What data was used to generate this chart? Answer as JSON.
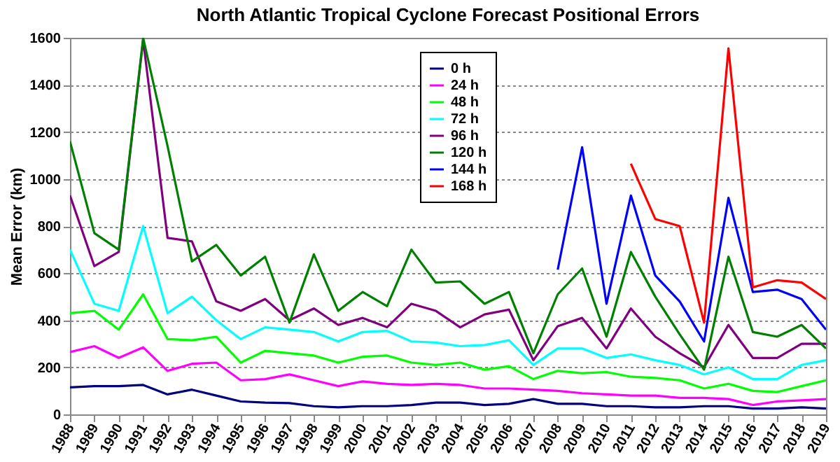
{
  "chart_data": {
    "type": "line",
    "title": "North Atlantic Tropical Cyclone Forecast Positional Errors",
    "ylabel": "Mean Error (km)",
    "categories": [
      "1988",
      "1989",
      "1990",
      "1991",
      "1992",
      "1993",
      "1994",
      "1995",
      "1996",
      "1997",
      "1998",
      "1999",
      "2000",
      "2001",
      "2002",
      "2003",
      "2004",
      "2005",
      "2006",
      "2007",
      "2008",
      "2009",
      "2010",
      "2011",
      "2012",
      "2013",
      "2014",
      "2015",
      "2016",
      "2017",
      "2018",
      "2019"
    ],
    "series": [
      {
        "name": "0 h",
        "color": "#000080",
        "values": [
          115,
          120,
          120,
          125,
          85,
          105,
          80,
          55,
          50,
          48,
          35,
          30,
          35,
          35,
          40,
          50,
          50,
          40,
          45,
          65,
          45,
          45,
          35,
          35,
          30,
          30,
          35,
          35,
          25,
          25,
          30,
          25
        ]
      },
      {
        "name": "24 h",
        "color": "#ff00ff",
        "values": [
          265,
          290,
          240,
          285,
          185,
          215,
          220,
          145,
          150,
          170,
          145,
          120,
          140,
          130,
          125,
          130,
          125,
          110,
          110,
          105,
          100,
          90,
          85,
          80,
          80,
          70,
          70,
          65,
          40,
          55,
          60,
          65
        ]
      },
      {
        "name": "48 h",
        "color": "#00ff00",
        "values": [
          430,
          440,
          360,
          510,
          320,
          315,
          330,
          220,
          270,
          260,
          250,
          220,
          245,
          250,
          220,
          210,
          220,
          190,
          205,
          150,
          185,
          175,
          180,
          160,
          155,
          145,
          110,
          130,
          100,
          95,
          120,
          145
        ]
      },
      {
        "name": "72 h",
        "color": "#00ffff",
        "values": [
          700,
          470,
          440,
          800,
          430,
          500,
          400,
          320,
          370,
          360,
          350,
          310,
          350,
          355,
          310,
          305,
          290,
          295,
          315,
          210,
          280,
          280,
          240,
          255,
          230,
          210,
          170,
          200,
          150,
          150,
          210,
          230
        ]
      },
      {
        "name": "96 h",
        "color": "#800080",
        "values": [
          930,
          630,
          690,
          1590,
          750,
          735,
          480,
          440,
          490,
          400,
          450,
          380,
          410,
          370,
          470,
          440,
          370,
          425,
          445,
          230,
          375,
          410,
          280,
          450,
          330,
          260,
          200,
          380,
          240,
          240,
          300,
          300
        ]
      },
      {
        "name": "120 h",
        "color": "#008000",
        "values": [
          1160,
          770,
          700,
          1600,
          1140,
          650,
          720,
          590,
          670,
          390,
          680,
          440,
          520,
          460,
          700,
          560,
          565,
          470,
          520,
          260,
          510,
          620,
          330,
          690,
          500,
          340,
          190,
          670,
          350,
          330,
          380,
          280
        ]
      },
      {
        "name": "144 h",
        "color": "#0000ff",
        "values": [
          null,
          null,
          null,
          null,
          null,
          null,
          null,
          null,
          null,
          null,
          null,
          null,
          null,
          null,
          null,
          null,
          null,
          null,
          null,
          null,
          615,
          1135,
          470,
          930,
          590,
          480,
          310,
          920,
          520,
          530,
          490,
          360
        ]
      },
      {
        "name": "168 h",
        "color": "#ff0000",
        "values": [
          null,
          null,
          null,
          null,
          null,
          null,
          null,
          null,
          null,
          null,
          null,
          null,
          null,
          null,
          null,
          null,
          null,
          null,
          null,
          null,
          null,
          null,
          null,
          1065,
          830,
          800,
          390,
          1555,
          540,
          570,
          560,
          490
        ]
      }
    ],
    "ylim": [
      0,
      1600
    ],
    "yticks": [
      0,
      200,
      400,
      600,
      800,
      1000,
      1200,
      1400,
      1600
    ],
    "grid": "y",
    "legend": "top",
    "marker": "none",
    "line_style": "solid"
  }
}
